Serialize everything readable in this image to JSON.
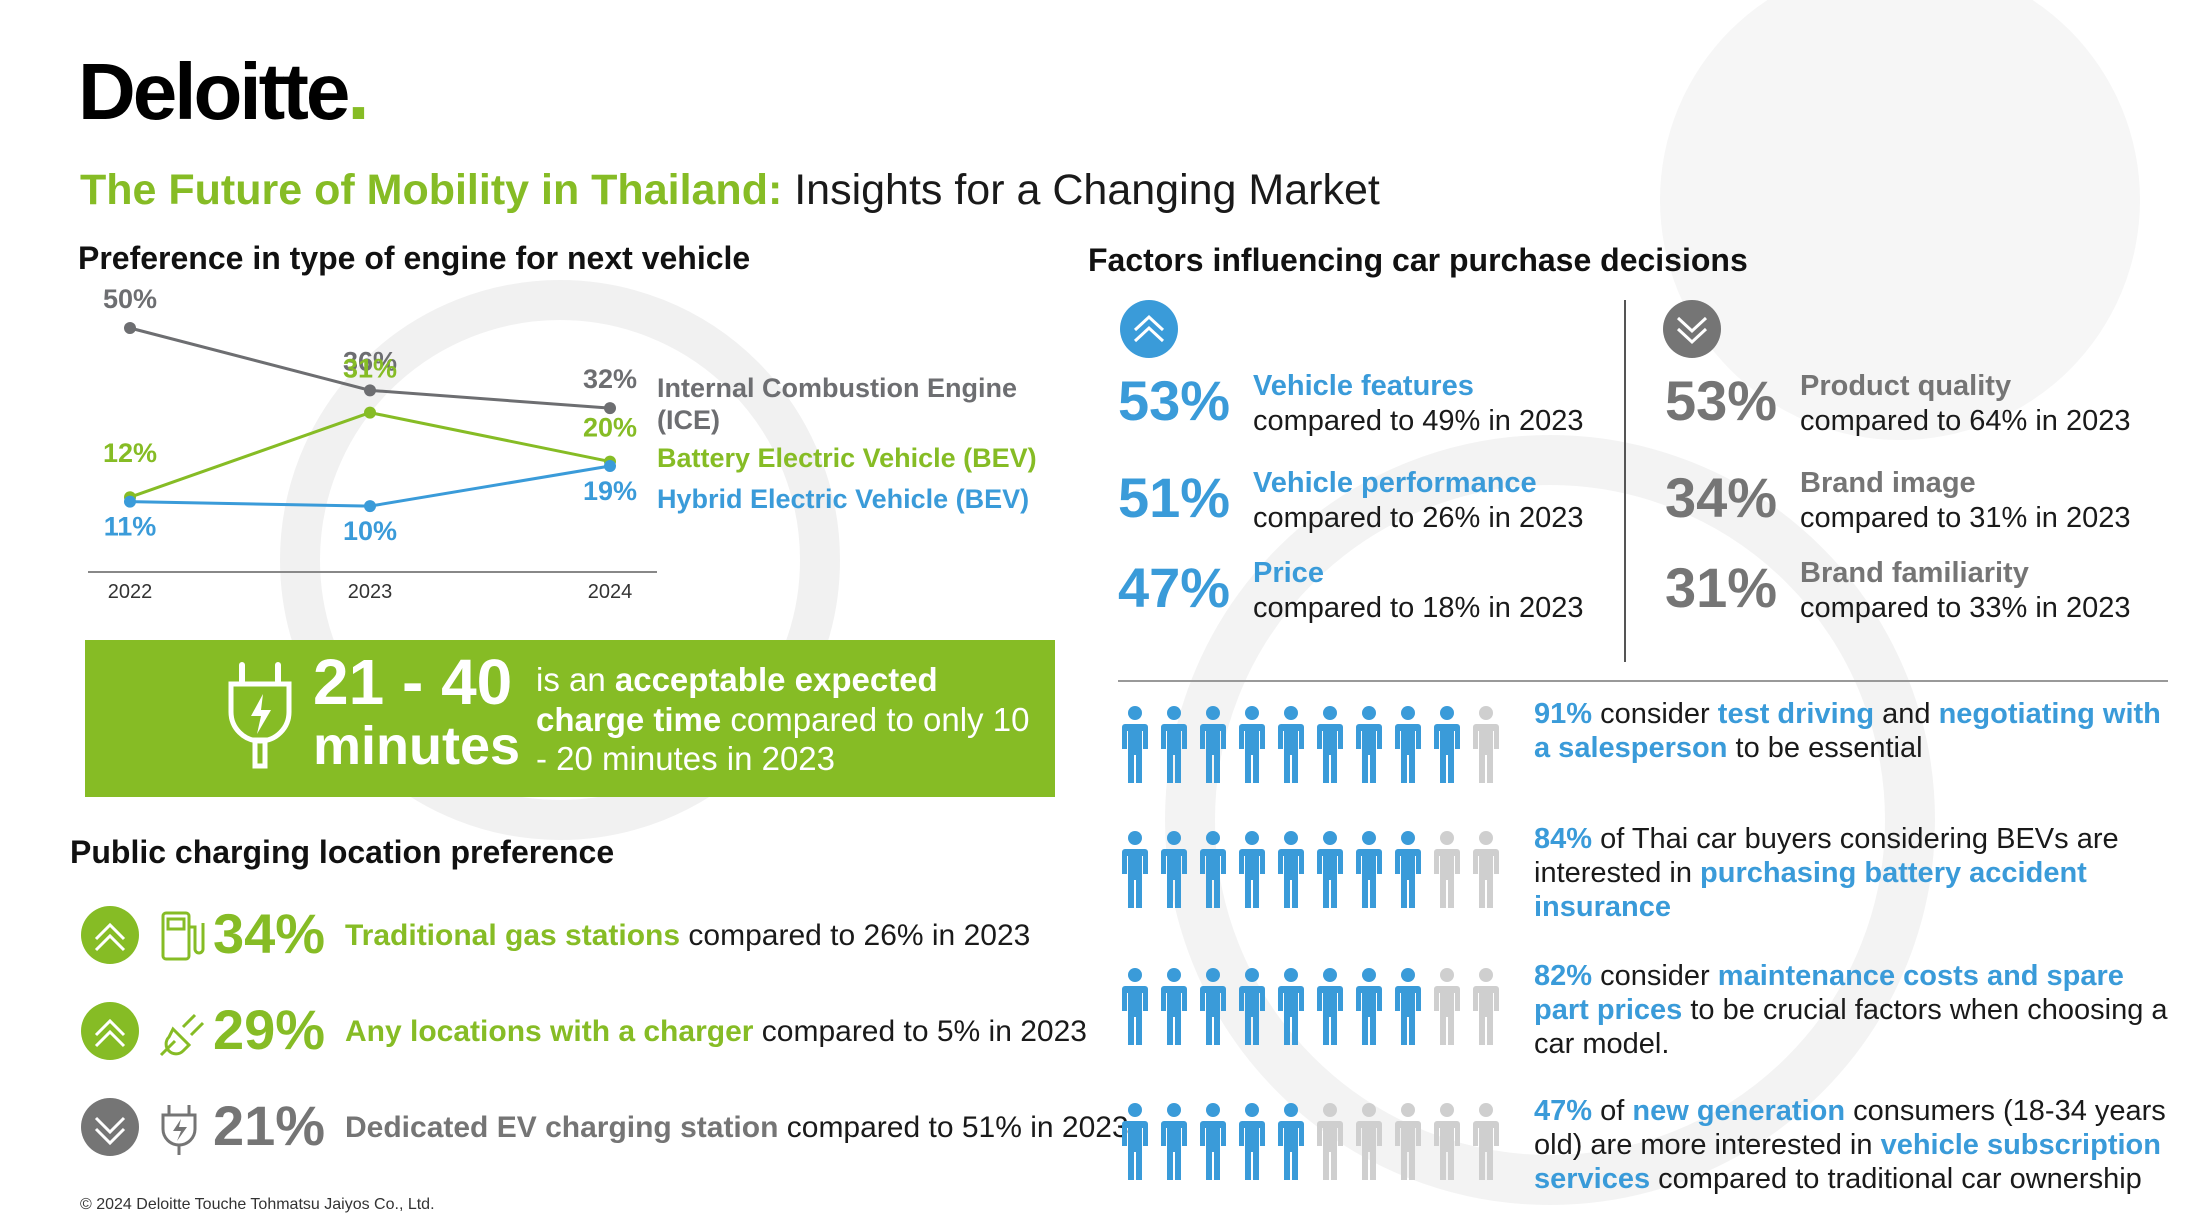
{
  "brand": {
    "logo_text": "Deloitte",
    "logo_dot": ".",
    "green": "#86BC25",
    "blue": "#3A9BD9",
    "grey": "#757575"
  },
  "title": {
    "highlight": "The Future of Mobility in Thailand:",
    "rest": " Insights for a Changing Market"
  },
  "engine_section": {
    "heading": "Preference in type of engine for next vehicle"
  },
  "chart_data": {
    "type": "line",
    "title": "Preference in type of engine for next vehicle",
    "categories": [
      "2022",
      "2023",
      "2024"
    ],
    "series": [
      {
        "name": "Internal Combustion Engine (ICE)",
        "values": [
          50,
          36,
          32
        ],
        "labels": [
          "50%",
          "36%",
          "32%"
        ],
        "color": "#6d6e71"
      },
      {
        "name": "Battery Electric Vehicle (BEV)",
        "values": [
          12,
          31,
          20
        ],
        "labels": [
          "12%",
          "31%",
          "20%"
        ],
        "color": "#86BC25"
      },
      {
        "name": "Hybrid Electric Vehicle (BEV)",
        "values": [
          11,
          10,
          19
        ],
        "labels": [
          "11%",
          "10%",
          "19%"
        ],
        "color": "#3A9BD9"
      }
    ],
    "legend": {
      "ice_line1": "Internal Combustion Engine",
      "ice_line2": "(ICE)",
      "bev": "Battery Electric Vehicle (BEV)",
      "hev": "Hybrid Electric Vehicle (BEV)"
    },
    "ylim": [
      0,
      55
    ],
    "grid": false
  },
  "charge_time": {
    "value": "21 - 40",
    "unit": "minutes",
    "text_pre": "is an ",
    "text_bold": "acceptable expected charge time",
    "text_post": " compared to only 10 - 20 minutes in 2023",
    "icon": "ev-plug-icon"
  },
  "charging_section": {
    "heading": "Public charging location preference",
    "rows": [
      {
        "trend": "up",
        "icon": "gas-pump-icon",
        "pct": "34%",
        "label": "Traditional gas stations",
        "compare": " compared to 26% in 2023",
        "color": "#86BC25"
      },
      {
        "trend": "up",
        "icon": "plug-icon",
        "pct": "29%",
        "label": "Any locations with a charger",
        "compare": " compared to 5% in 2023",
        "color": "#86BC25"
      },
      {
        "trend": "down",
        "icon": "ev-charger-icon",
        "pct": "21%",
        "label": "Dedicated EV charging station",
        "compare": " compared to 51% in 2023",
        "color": "#757575"
      }
    ]
  },
  "factors_section": {
    "heading": "Factors influencing car purchase decisions",
    "increasing": [
      {
        "pct": "53%",
        "name": "Vehicle features",
        "compare": "compared to 49% in 2023"
      },
      {
        "pct": "51%",
        "name": "Vehicle performance",
        "compare": "compared to 26% in 2023"
      },
      {
        "pct": "47%",
        "name": "Price",
        "compare": "compared to 18% in 2023"
      }
    ],
    "decreasing": [
      {
        "pct": "53%",
        "name": "Product quality",
        "compare": "compared to 64% in 2023"
      },
      {
        "pct": "34%",
        "name": "Brand image",
        "compare": "compared to 31% in 2023"
      },
      {
        "pct": "31%",
        "name": "Brand familiarity",
        "compare": "compared to 33% in 2023"
      }
    ]
  },
  "people_stats": [
    {
      "filled": 9,
      "total": 10,
      "segments": [
        {
          "t": "91%",
          "b": true
        },
        {
          "t": " consider ",
          "b": false
        },
        {
          "t": "test driving",
          "b": true
        },
        {
          "t": " and ",
          "b": false
        },
        {
          "t": "negotiating with a salesperson",
          "b": true
        },
        {
          "t": " to be essential",
          "b": false
        }
      ]
    },
    {
      "filled": 8,
      "total": 10,
      "segments": [
        {
          "t": "84%",
          "b": true
        },
        {
          "t": " of Thai car buyers considering BEVs are interested in ",
          "b": false
        },
        {
          "t": "purchasing battery accident insurance",
          "b": true
        }
      ]
    },
    {
      "filled": 8,
      "total": 10,
      "segments": [
        {
          "t": "82%",
          "b": true
        },
        {
          "t": " consider ",
          "b": false
        },
        {
          "t": "maintenance costs and spare part prices",
          "b": true
        },
        {
          "t": " to be crucial factors when choosing a car model.",
          "b": false
        }
      ]
    },
    {
      "filled": 5,
      "total": 10,
      "segments": [
        {
          "t": "47%",
          "b": true
        },
        {
          "t": " of ",
          "b": false
        },
        {
          "t": "new generation",
          "b": true
        },
        {
          "t": " consumers (18-34 years old) are more interested in ",
          "b": false
        },
        {
          "t": "vehicle subscription services",
          "b": true
        },
        {
          "t": " compared to traditional car ownership",
          "b": false
        }
      ]
    }
  ],
  "footer": "© 2024 Deloitte Touche Tohmatsu Jaiyos Co., Ltd."
}
